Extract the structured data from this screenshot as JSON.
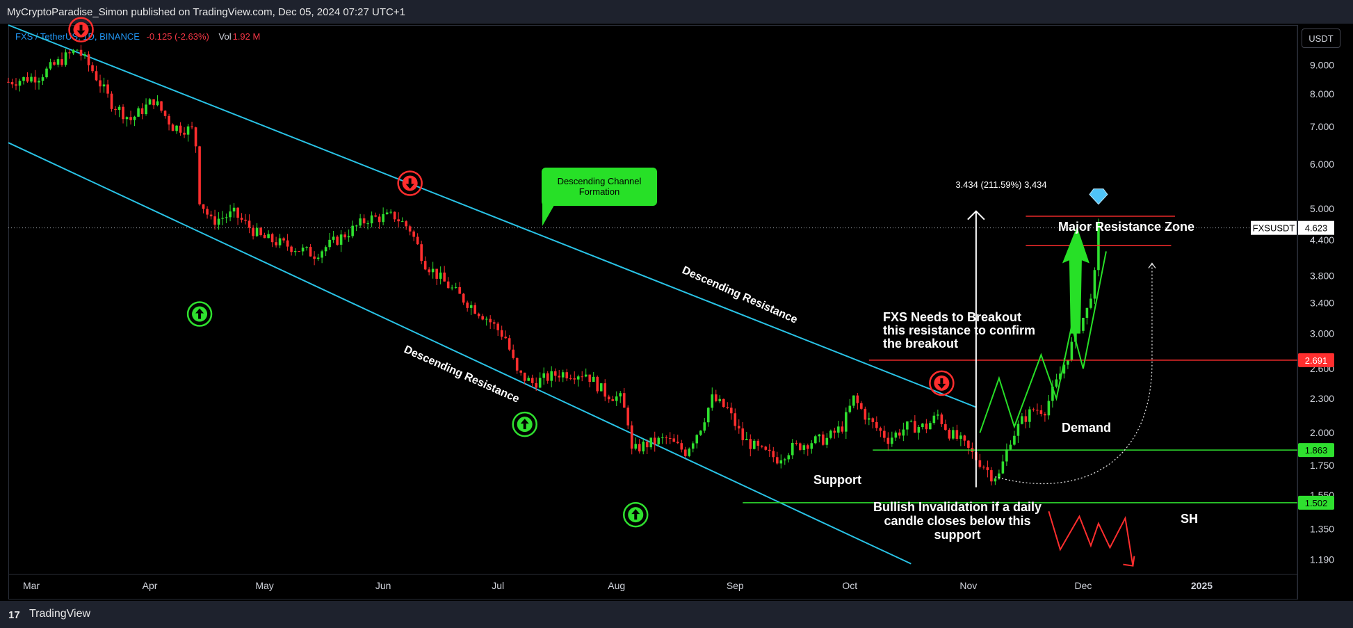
{
  "header": {
    "published": "MyCryptoParadise_Simon published on TradingView.com, Dec 05, 2024 07:27 UTC+1"
  },
  "legend": {
    "symbol": "FXS / TetherUS, 1D, BINANCE",
    "change": "-0.125 (-2.63%)",
    "vol_label": "Vol",
    "vol_value": "1.92 M"
  },
  "currency": "USDT",
  "footer": {
    "brand": "TradingView",
    "logo": "17"
  },
  "colors": {
    "up": "#2fe02f",
    "down": "#ff2e2e",
    "channel": "#29c3e6",
    "support": "#2fe02f",
    "resistance": "#ff2e2e",
    "projection": "#27e027",
    "bearish": "#ff2e2e"
  },
  "annotations": {
    "channel_box": "Descending Channel Formation",
    "upper_line": "Descending Resistance",
    "lower_line": "Descending Resistance",
    "measure": "3.434 (211.59%) 3,434",
    "resistance_zone": "Major Resistance Zone",
    "breakout_note": [
      "FXS Needs to Breakout",
      "this resistance to confirm",
      " the breakout"
    ],
    "demand": "Demand",
    "support": "Support",
    "invalidation": [
      "Bullish Invalidation if a daily",
      "candle closes below this",
      "support"
    ],
    "sh": "SH"
  },
  "chart_data": {
    "type": "candlestick",
    "symbol": "FXSUSDT",
    "y_scale": "log",
    "ylim": [
      1.12,
      10.6
    ],
    "xlim": [
      "2024-02-24",
      "2025-01-26"
    ],
    "y_ticks": [
      "9.000",
      "8.000",
      "7.000",
      "6.000",
      "5.000",
      "4.400",
      "3.800",
      "3.400",
      "3.000",
      "2.600",
      "2.300",
      "2.000",
      "1.750",
      "1.550",
      "1.350",
      "1.190"
    ],
    "x_ticks": [
      "Mar",
      "Apr",
      "May",
      "Jun",
      "Jul",
      "Aug",
      "Sep",
      "Oct",
      "Nov",
      "Dec",
      "2025"
    ],
    "price_label": {
      "name": "FXSUSDT",
      "value": "4.623"
    },
    "levels": [
      {
        "value": "2.691",
        "role": "breakout resistance",
        "color": "#ff2e2e"
      },
      {
        "value": "1.863",
        "role": "demand",
        "color": "#2fe02f"
      },
      {
        "value": "1.502",
        "role": "support",
        "color": "#2fe02f"
      }
    ],
    "resistance_zone": [
      4.3,
      4.85
    ],
    "path": [
      [
        "2024-02-24",
        8.4
      ],
      [
        "2024-03-03",
        8.6
      ],
      [
        "2024-03-10",
        9.3
      ],
      [
        "2024-03-13",
        9.6
      ],
      [
        "2024-03-17",
        8.8
      ],
      [
        "2024-03-22",
        7.7
      ],
      [
        "2024-03-27",
        7.2
      ],
      [
        "2024-04-02",
        7.8
      ],
      [
        "2024-04-07",
        7.0
      ],
      [
        "2024-04-12",
        6.9
      ],
      [
        "2024-04-13",
        6.5
      ],
      [
        "2024-04-14",
        5.2
      ],
      [
        "2024-04-17",
        4.75
      ],
      [
        "2024-04-23",
        4.9
      ],
      [
        "2024-04-30",
        4.45
      ],
      [
        "2024-05-07",
        4.3
      ],
      [
        "2024-05-14",
        4.15
      ],
      [
        "2024-05-21",
        4.45
      ],
      [
        "2024-05-28",
        4.8
      ],
      [
        "2024-06-04",
        4.85
      ],
      [
        "2024-06-08",
        4.6
      ],
      [
        "2024-06-12",
        4.0
      ],
      [
        "2024-06-17",
        3.7
      ],
      [
        "2024-06-22",
        3.45
      ],
      [
        "2024-06-28",
        3.2
      ],
      [
        "2024-07-03",
        2.95
      ],
      [
        "2024-07-06",
        2.55
      ],
      [
        "2024-07-10",
        2.45
      ],
      [
        "2024-07-17",
        2.55
      ],
      [
        "2024-07-24",
        2.55
      ],
      [
        "2024-07-29",
        2.35
      ],
      [
        "2024-08-02",
        2.3
      ],
      [
        "2024-08-04",
        2.1
      ],
      [
        "2024-08-05",
        1.85
      ],
      [
        "2024-08-08",
        1.9
      ],
      [
        "2024-08-14",
        1.95
      ],
      [
        "2024-08-19",
        1.85
      ],
      [
        "2024-08-23",
        2.05
      ],
      [
        "2024-08-26",
        2.3
      ],
      [
        "2024-08-30",
        2.2
      ],
      [
        "2024-09-03",
        1.95
      ],
      [
        "2024-09-08",
        1.85
      ],
      [
        "2024-09-12",
        1.8
      ],
      [
        "2024-09-16",
        1.88
      ],
      [
        "2024-09-21",
        1.93
      ],
      [
        "2024-09-25",
        1.95
      ],
      [
        "2024-09-29",
        2.05
      ],
      [
        "2024-10-02",
        2.3
      ],
      [
        "2024-10-06",
        2.1
      ],
      [
        "2024-10-11",
        1.95
      ],
      [
        "2024-10-16",
        2.05
      ],
      [
        "2024-10-21",
        2.05
      ],
      [
        "2024-10-24",
        2.15
      ],
      [
        "2024-10-27",
        2.0
      ],
      [
        "2024-10-30",
        1.93
      ],
      [
        "2024-11-03",
        1.8
      ],
      [
        "2024-11-05",
        1.75
      ],
      [
        "2024-11-07",
        1.68
      ],
      [
        "2024-11-09",
        1.68
      ],
      [
        "2024-11-12",
        1.95
      ],
      [
        "2024-11-15",
        2.1
      ],
      [
        "2024-11-18",
        2.2
      ],
      [
        "2024-11-21",
        2.2
      ],
      [
        "2024-11-24",
        2.45
      ],
      [
        "2024-11-27",
        2.75
      ],
      [
        "2024-11-30",
        3.1
      ],
      [
        "2024-12-02",
        3.3
      ],
      [
        "2024-12-04",
        3.8
      ],
      [
        "2024-12-05",
        4.63
      ]
    ],
    "markers_down": [
      [
        "2024-03-14",
        10.4
      ],
      [
        "2024-06-08",
        5.55
      ],
      [
        "2024-10-25",
        2.45
      ]
    ],
    "markers_up": [
      [
        "2024-04-14",
        3.25
      ],
      [
        "2024-07-08",
        2.07
      ],
      [
        "2024-08-06",
        1.43
      ]
    ],
    "upper_channel": [
      [
        "2024-02-24",
        10.6
      ],
      [
        "2024-11-03",
        2.22
      ]
    ],
    "lower_channel": [
      [
        "2024-02-24",
        6.55
      ],
      [
        "2024-10-17",
        1.17
      ]
    ],
    "measure": {
      "date": "2024-11-03",
      "from": 1.6,
      "to": 4.95
    },
    "projection": [
      [
        "2024-11-04",
        2.0
      ],
      [
        "2024-11-09",
        2.5
      ],
      [
        "2024-11-13",
        2.05
      ],
      [
        "2024-11-20",
        2.75
      ],
      [
        "2024-11-24",
        2.3
      ],
      [
        "2024-11-28",
        3.1
      ],
      [
        "2024-12-01",
        2.6
      ],
      [
        "2024-12-07",
        4.2
      ]
    ],
    "bearish_path": [
      [
        "2024-11-22",
        1.45
      ],
      [
        "2024-11-25",
        1.24
      ],
      [
        "2024-11-30",
        1.42
      ],
      [
        "2024-12-03",
        1.26
      ],
      [
        "2024-12-05",
        1.38
      ],
      [
        "2024-12-08",
        1.25
      ],
      [
        "2024-12-12",
        1.41
      ],
      [
        "2024-12-14",
        1.16
      ]
    ],
    "dotted_arc": [
      [
        "2024-11-08",
        1.67
      ],
      [
        "2024-11-28",
        1.53
      ],
      [
        "2024-12-12",
        1.7
      ],
      [
        "2024-12-19",
        2.7
      ],
      [
        "2024-12-19",
        4.0
      ]
    ]
  }
}
